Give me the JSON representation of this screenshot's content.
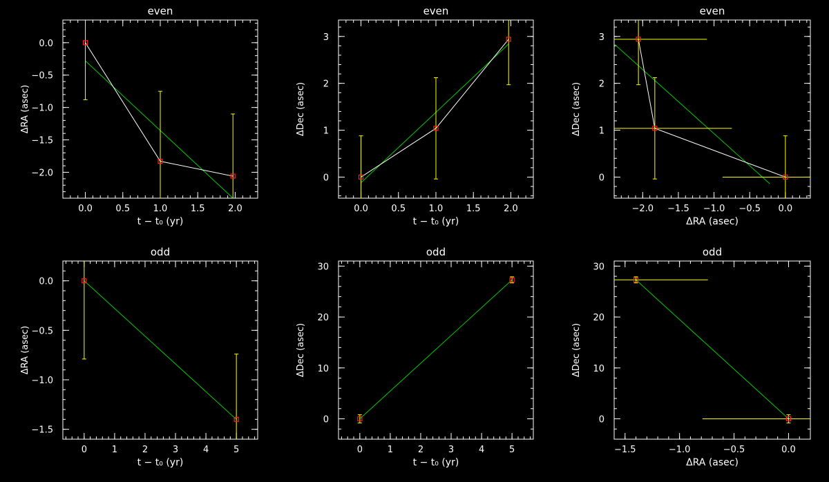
{
  "colors": {
    "background": "#000000",
    "axes": "#ffffff",
    "data_line": "#ffffff",
    "fit_line": "#00cc00",
    "error_bar": "#ffff00",
    "marker": "#ff2020"
  },
  "chart_data": [
    {
      "type": "scatter",
      "title": "even",
      "xlabel": "t − t₀ (yr)",
      "ylabel": "ΔRA (asec)",
      "xlim": [
        -0.3,
        2.3
      ],
      "ylim": [
        -2.4,
        0.35
      ],
      "xticks": [
        0,
        0.5,
        1,
        1.5,
        2
      ],
      "xticklabels": [
        "0.0",
        "0.5",
        "1.0",
        "1.5",
        "2.0"
      ],
      "yticks": [
        0,
        -0.5,
        -1,
        -1.5,
        -2
      ],
      "yticklabels": [
        "0.0",
        "−0.5",
        "−1.0",
        "−1.5",
        "−2.0"
      ],
      "xminor": 0.1,
      "yminor": 0.1,
      "points": [
        {
          "x": 0.0,
          "y": 0.0,
          "yerr": 0.88
        },
        {
          "x": 1.0,
          "y": -1.83,
          "yerr": 1.08
        },
        {
          "x": 1.97,
          "y": -2.06,
          "yerr": 0.96
        }
      ],
      "fit": [
        [
          0.0,
          -0.28
        ],
        [
          1.97,
          -2.4
        ]
      ]
    },
    {
      "type": "scatter",
      "title": "even",
      "xlabel": "t − t₀ (yr)",
      "ylabel": "ΔDec (asec)",
      "xlim": [
        -0.3,
        2.3
      ],
      "ylim": [
        -0.45,
        3.35
      ],
      "xticks": [
        0,
        0.5,
        1,
        1.5,
        2
      ],
      "xticklabels": [
        "0.0",
        "0.5",
        "1.0",
        "1.5",
        "2.0"
      ],
      "yticks": [
        0,
        1,
        2,
        3
      ],
      "yticklabels": [
        "0",
        "1",
        "2",
        "3"
      ],
      "xminor": 0.1,
      "yminor": 0.2,
      "points": [
        {
          "x": 0.0,
          "y": 0.0,
          "yerr": 0.88
        },
        {
          "x": 1.0,
          "y": 1.04,
          "yerr": 1.08
        },
        {
          "x": 1.97,
          "y": 2.94,
          "yerr": 0.97
        }
      ],
      "fit": [
        [
          0.0,
          -0.12
        ],
        [
          1.97,
          2.84
        ]
      ]
    },
    {
      "type": "scatter",
      "title": "even",
      "xlabel": "ΔRA (asec)",
      "ylabel": "ΔDec (asec)",
      "xlim": [
        -2.4,
        0.35
      ],
      "ylim": [
        -0.45,
        3.35
      ],
      "xticks": [
        -2,
        -1.5,
        -1,
        -0.5,
        0
      ],
      "xticklabels": [
        "−2.0",
        "−1.5",
        "−1.0",
        "−0.5",
        "0.0"
      ],
      "yticks": [
        0,
        1,
        2,
        3
      ],
      "yticklabels": [
        "0",
        "1",
        "2",
        "3"
      ],
      "xminor": 0.1,
      "yminor": 0.2,
      "points": [
        {
          "x": -2.06,
          "y": 2.94,
          "yerr": 0.97,
          "xerr": 0.96
        },
        {
          "x": -1.83,
          "y": 1.04,
          "yerr": 1.08,
          "xerr": 1.08
        },
        {
          "x": 0.0,
          "y": 0.0,
          "yerr": 0.88,
          "xerr": 0.88
        }
      ],
      "fit": [
        [
          -2.4,
          2.84
        ],
        [
          -0.22,
          -0.14
        ]
      ]
    },
    {
      "type": "scatter",
      "title": "odd",
      "xlabel": "t − t₀ (yr)",
      "ylabel": "ΔRA (asec)",
      "xlim": [
        -0.7,
        5.7
      ],
      "ylim": [
        -1.6,
        0.2
      ],
      "xticks": [
        0,
        1,
        2,
        3,
        4,
        5
      ],
      "xticklabels": [
        "0",
        "1",
        "2",
        "3",
        "4",
        "5"
      ],
      "yticks": [
        0,
        -0.5,
        -1,
        -1.5
      ],
      "yticklabels": [
        "0.0",
        "−0.5",
        "−1.0",
        "−1.5"
      ],
      "xminor": 0.2,
      "yminor": 0.1,
      "points": [
        {
          "x": 0.0,
          "y": 0.0,
          "yerr": 0.79
        },
        {
          "x": 5.0,
          "y": -1.4,
          "yerr": 0.66
        }
      ],
      "fit": [
        [
          0.0,
          0.0
        ],
        [
          5.0,
          -1.4
        ]
      ]
    },
    {
      "type": "scatter",
      "title": "odd",
      "xlabel": "t − t₀ (yr)",
      "ylabel": "ΔDec (asec)",
      "xlim": [
        -0.7,
        5.7
      ],
      "ylim": [
        -4,
        31
      ],
      "xticks": [
        0,
        1,
        2,
        3,
        4,
        5
      ],
      "xticklabels": [
        "0",
        "1",
        "2",
        "3",
        "4",
        "5"
      ],
      "yticks": [
        0,
        10,
        20,
        30
      ],
      "yticklabels": [
        "0",
        "10",
        "20",
        "30"
      ],
      "xminor": 0.2,
      "yminor": 2,
      "points": [
        {
          "x": 0.0,
          "y": 0.0,
          "yerr": 0.8
        },
        {
          "x": 5.0,
          "y": 27.3,
          "yerr": 0.6
        }
      ],
      "fit": [
        [
          0.0,
          0.0
        ],
        [
          5.0,
          27.3
        ]
      ]
    },
    {
      "type": "scatter",
      "title": "odd",
      "xlabel": "ΔRA (asec)",
      "ylabel": "ΔDec (asec)",
      "xlim": [
        -1.6,
        0.2
      ],
      "ylim": [
        -4,
        31
      ],
      "xticks": [
        -1.5,
        -1,
        -0.5,
        0
      ],
      "xticklabels": [
        "−1.5",
        "−1.0",
        "−0.5",
        "0.0"
      ],
      "yticks": [
        0,
        10,
        20,
        30
      ],
      "yticklabels": [
        "0",
        "10",
        "20",
        "30"
      ],
      "xminor": 0.1,
      "yminor": 2,
      "points": [
        {
          "x": -1.4,
          "y": 27.3,
          "yerr": 0.6,
          "xerr": 0.66
        },
        {
          "x": 0.0,
          "y": 0.0,
          "yerr": 0.8,
          "xerr": 0.79
        }
      ],
      "fit": [
        [
          -1.4,
          27.3
        ],
        [
          0.0,
          0.0
        ]
      ]
    }
  ]
}
